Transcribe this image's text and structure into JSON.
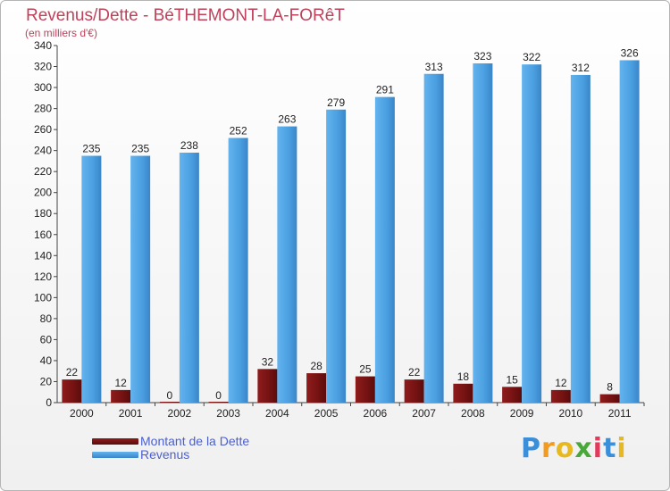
{
  "title": "Revenus/Dette - BéTHEMONT-LA-FORêT",
  "subtitle": "(en milliers d'€)",
  "colors": {
    "title": "#c0415a",
    "dette": "#7a1414",
    "revenus": "#4a9fe0",
    "legend_text": "#4a5fd2"
  },
  "chart_data": {
    "type": "bar",
    "title": "Revenus/Dette - BéTHEMONT-LA-FORêT",
    "ylabel": "(en milliers d'€)",
    "xlabel": "",
    "categories": [
      "2000",
      "2001",
      "2002",
      "2003",
      "2004",
      "2005",
      "2006",
      "2007",
      "2008",
      "2009",
      "2010",
      "2011"
    ],
    "series": [
      {
        "name": "Montant de la Dette",
        "color": "#7a1414",
        "values": [
          22,
          12,
          0,
          0,
          32,
          28,
          25,
          22,
          18,
          15,
          12,
          8
        ]
      },
      {
        "name": "Revenus",
        "color": "#4a9fe0",
        "values": [
          235,
          235,
          238,
          252,
          263,
          279,
          291,
          313,
          323,
          322,
          312,
          326
        ]
      }
    ],
    "ylim": [
      0,
      340
    ],
    "yticks": [
      0,
      20,
      40,
      60,
      80,
      100,
      120,
      140,
      160,
      180,
      200,
      220,
      240,
      260,
      280,
      300,
      320,
      340
    ],
    "grid": false,
    "legend": "bottom-left"
  },
  "legend": [
    {
      "label": "Montant de la Dette"
    },
    {
      "label": "Revenus"
    }
  ],
  "logo": {
    "letters": [
      "P",
      "r",
      "o",
      "x",
      "i",
      "t",
      "i"
    ],
    "colors": [
      "#3a8fd8",
      "#f39b1e",
      "#e8b820",
      "#4aa83a",
      "#e23a5a",
      "#3a8fd8",
      "#e8b820"
    ]
  }
}
